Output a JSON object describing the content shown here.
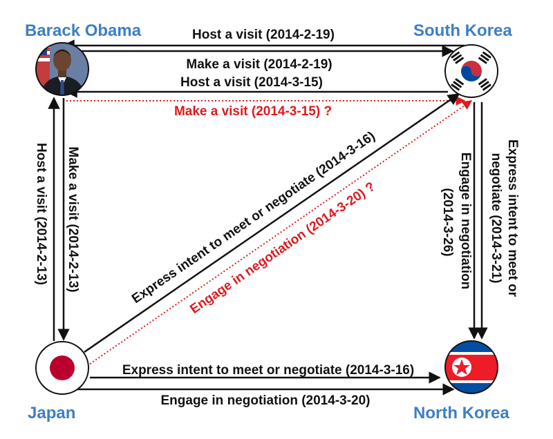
{
  "colors": {
    "node_label": "#3d7ec6",
    "edge": "#111111",
    "edge_text": "#111111",
    "speculative": "#e0191e"
  },
  "nodes": {
    "obama": {
      "label": "Barack Obama",
      "icon": "portrait-photo"
    },
    "south_korea": {
      "label": "South Korea",
      "icon": "south-korea-flag"
    },
    "japan": {
      "label": "Japan",
      "icon": "japan-flag"
    },
    "north_korea": {
      "label": "North Korea",
      "icon": "north-korea-flag"
    }
  },
  "edges": {
    "sk_host_obama": "Host a visit (2014-2-19)",
    "obama_visit_sk": "Make a visit (2014-2-19)",
    "sk_host_obama_2": "Host a visit (2014-3-15)",
    "obama_visit_sk_2": "Make a visit (2014-3-15) ?",
    "obama_host_japan": "Host a visit (2014-2-13)",
    "japan_visit_obama": "Make a visit (2014-2-13)",
    "japan_intent_sk": "Express intent to meet or negotiate (2014-3-16)",
    "japan_negotiate_sk": "Engage in negotiation (2014-3-20) ?",
    "sk_negotiate_nk_line1": "Engage in negotiation",
    "sk_negotiate_nk_line2": "(2014-3-26)",
    "sk_intent_nk_line1": "Express intent to meet or",
    "sk_intent_nk_line2": "negotiate (2014-3-21)",
    "japan_intent_nk": "Express intent to meet or negotiate (2014-3-16)",
    "japan_negotiate_nk": "Engage in negotiation (2014-3-20)"
  }
}
